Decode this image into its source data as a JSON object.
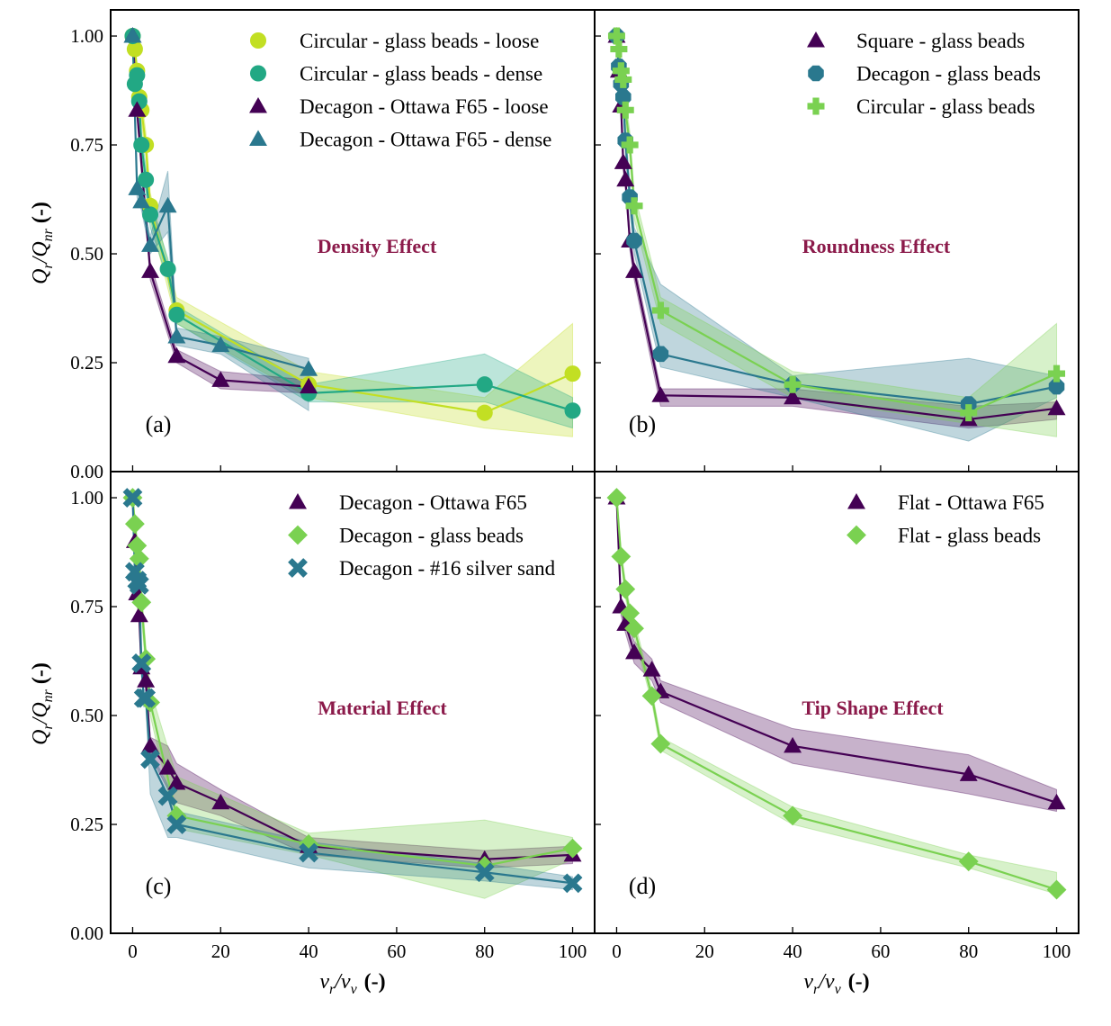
{
  "figure": {
    "xlabel_main": "v",
    "xlabel_sub1": "r",
    "xlabel_slash": "/v",
    "xlabel_sub2": "v",
    "xlabel_unit": "(-)",
    "ylabel_main": "Q",
    "ylabel_sub1": "r",
    "ylabel_slash": "/Q",
    "ylabel_sub2": "nr",
    "ylabel_unit": "(-)"
  },
  "colors": {
    "dark_purple": "#440154",
    "teal_blue": "#2a788e",
    "teal_green": "#22a884",
    "light_green": "#7ad151",
    "yellow_green": "#c2df23",
    "annotation": "#8b1a4a"
  },
  "chart_data": [
    {
      "type": "line",
      "panel": "(a)",
      "annotation": "Density Effect",
      "xlim": [
        -5,
        105
      ],
      "ylim": [
        0,
        1.06
      ],
      "xticks": [
        "0",
        "20",
        "40",
        "60",
        "80",
        "100"
      ],
      "yticks": [
        "0.00",
        "0.25",
        "0.50",
        "0.75",
        "1.00"
      ],
      "series": [
        {
          "name": "Circular - glass beads - loose",
          "marker": "circle",
          "color": "#c2df23",
          "x": [
            0,
            0.5,
            1,
            1.5,
            2,
            3,
            4,
            10,
            40,
            80,
            100
          ],
          "y": [
            1.0,
            0.97,
            0.92,
            0.86,
            0.83,
            0.75,
            0.61,
            0.37,
            0.2,
            0.135,
            0.225
          ],
          "lo": [
            1.0,
            0.96,
            0.9,
            0.84,
            0.8,
            0.72,
            0.58,
            0.34,
            0.17,
            0.1,
            0.08
          ],
          "hi": [
            1.0,
            0.98,
            0.94,
            0.88,
            0.86,
            0.78,
            0.64,
            0.4,
            0.23,
            0.17,
            0.34
          ]
        },
        {
          "name": "Circular - glass beads - dense",
          "marker": "circle",
          "color": "#22a884",
          "x": [
            0,
            0.5,
            1,
            1.5,
            2,
            3,
            4,
            8,
            10,
            40,
            80,
            100
          ],
          "y": [
            1.0,
            0.89,
            0.91,
            0.85,
            0.75,
            0.67,
            0.59,
            0.465,
            0.36,
            0.18,
            0.2,
            0.14
          ],
          "lo": [
            1.0,
            0.87,
            0.89,
            0.83,
            0.72,
            0.64,
            0.56,
            0.44,
            0.34,
            0.16,
            0.16,
            0.1
          ],
          "hi": [
            1.0,
            0.91,
            0.93,
            0.87,
            0.78,
            0.7,
            0.62,
            0.49,
            0.38,
            0.2,
            0.27,
            0.17
          ]
        },
        {
          "name": "Decagon - Ottawa F65 - loose",
          "marker": "triangle",
          "color": "#440154",
          "x": [
            0,
            1,
            4,
            10,
            20,
            40
          ],
          "y": [
            1.0,
            0.83,
            0.46,
            0.265,
            0.21,
            0.195
          ],
          "lo": [
            1.0,
            0.81,
            0.44,
            0.25,
            0.19,
            0.18
          ],
          "hi": [
            1.0,
            0.85,
            0.48,
            0.28,
            0.23,
            0.21
          ]
        },
        {
          "name": "Decagon - Ottawa F65 - dense",
          "marker": "triangle",
          "color": "#2a788e",
          "x": [
            0,
            1,
            2,
            4,
            8,
            10,
            20,
            40
          ],
          "y": [
            1.0,
            0.65,
            0.62,
            0.52,
            0.61,
            0.31,
            0.29,
            0.235
          ],
          "lo": [
            1.0,
            0.63,
            0.6,
            0.5,
            0.55,
            0.29,
            0.27,
            0.14
          ],
          "hi": [
            1.0,
            0.67,
            0.64,
            0.54,
            0.69,
            0.33,
            0.31,
            0.26
          ]
        }
      ]
    },
    {
      "type": "line",
      "panel": "(b)",
      "annotation": "Roundness Effect",
      "xlim": [
        -5,
        105
      ],
      "ylim": [
        0,
        1.06
      ],
      "xticks": [
        "0",
        "20",
        "40",
        "60",
        "80",
        "100"
      ],
      "yticks": [
        "0.00",
        "0.25",
        "0.50",
        "0.75",
        "1.00"
      ],
      "series": [
        {
          "name": "Square - glass beads",
          "marker": "triangle",
          "color": "#440154",
          "x": [
            0,
            0.5,
            1,
            1.5,
            2,
            3,
            4,
            10,
            40,
            80,
            100
          ],
          "y": [
            1.0,
            0.92,
            0.84,
            0.71,
            0.67,
            0.53,
            0.46,
            0.175,
            0.17,
            0.12,
            0.145
          ],
          "lo": [
            1.0,
            0.9,
            0.82,
            0.69,
            0.65,
            0.51,
            0.44,
            0.15,
            0.15,
            0.1,
            0.12
          ],
          "hi": [
            1.0,
            0.94,
            0.86,
            0.73,
            0.69,
            0.55,
            0.48,
            0.19,
            0.19,
            0.15,
            0.16
          ]
        },
        {
          "name": "Decagon - glass beads",
          "marker": "octagon",
          "color": "#2a788e",
          "x": [
            0,
            0.5,
            1,
            1.5,
            2,
            3,
            4,
            10,
            40,
            80,
            100
          ],
          "y": [
            1.0,
            0.93,
            0.89,
            0.86,
            0.76,
            0.63,
            0.53,
            0.27,
            0.2,
            0.155,
            0.195
          ],
          "lo": [
            1.0,
            0.91,
            0.87,
            0.84,
            0.73,
            0.6,
            0.5,
            0.24,
            0.17,
            0.07,
            0.17
          ],
          "hi": [
            1.0,
            0.95,
            0.91,
            0.88,
            0.79,
            0.66,
            0.56,
            0.43,
            0.22,
            0.26,
            0.22
          ]
        },
        {
          "name": "Circular - glass beads",
          "marker": "plus",
          "color": "#7ad151",
          "x": [
            0,
            0.5,
            1,
            1.5,
            2,
            3,
            4,
            10,
            40,
            80,
            100
          ],
          "y": [
            1.0,
            0.97,
            0.92,
            0.9,
            0.83,
            0.75,
            0.61,
            0.37,
            0.2,
            0.135,
            0.225
          ],
          "lo": [
            1.0,
            0.96,
            0.9,
            0.88,
            0.8,
            0.72,
            0.58,
            0.34,
            0.17,
            0.11,
            0.08
          ],
          "hi": [
            1.0,
            0.98,
            0.94,
            0.92,
            0.86,
            0.78,
            0.64,
            0.4,
            0.23,
            0.17,
            0.34
          ]
        }
      ]
    },
    {
      "type": "line",
      "panel": "(c)",
      "annotation": "Material Effect",
      "xlim": [
        -5,
        105
      ],
      "ylim": [
        0,
        1.06
      ],
      "xticks": [
        "0",
        "20",
        "40",
        "60",
        "80",
        "100"
      ],
      "yticks": [
        "0.00",
        "0.25",
        "0.50",
        "0.75",
        "1.00"
      ],
      "series": [
        {
          "name": "Decagon - Ottawa F65",
          "marker": "triangle",
          "color": "#440154",
          "x": [
            0,
            0.5,
            1,
            1.5,
            2,
            3,
            4,
            8,
            10,
            20,
            40,
            80,
            100
          ],
          "y": [
            1.0,
            0.9,
            0.78,
            0.73,
            0.61,
            0.58,
            0.43,
            0.38,
            0.345,
            0.3,
            0.2,
            0.17,
            0.18
          ],
          "lo": [
            1.0,
            0.88,
            0.76,
            0.71,
            0.59,
            0.56,
            0.41,
            0.33,
            0.3,
            0.27,
            0.18,
            0.15,
            0.16
          ],
          "hi": [
            1.0,
            0.92,
            0.8,
            0.75,
            0.63,
            0.6,
            0.45,
            0.43,
            0.39,
            0.33,
            0.22,
            0.19,
            0.2
          ]
        },
        {
          "name": "Decagon - glass beads",
          "marker": "diamond",
          "color": "#7ad151",
          "x": [
            0,
            0.5,
            1,
            1.5,
            2,
            3,
            4,
            10,
            40,
            80,
            100
          ],
          "y": [
            1.0,
            0.94,
            0.89,
            0.86,
            0.76,
            0.63,
            0.53,
            0.27,
            0.205,
            0.155,
            0.195
          ],
          "lo": [
            1.0,
            0.92,
            0.87,
            0.84,
            0.73,
            0.6,
            0.5,
            0.24,
            0.18,
            0.08,
            0.17
          ],
          "hi": [
            1.0,
            0.96,
            0.91,
            0.88,
            0.79,
            0.66,
            0.56,
            0.36,
            0.23,
            0.26,
            0.22
          ]
        },
        {
          "name": "Decagon - #16 silver sand",
          "marker": "cross",
          "color": "#2a788e",
          "x": [
            0,
            0.5,
            1,
            1.5,
            2,
            2.5,
            3,
            4,
            8,
            10,
            40,
            80,
            100
          ],
          "y": [
            1.0,
            0.83,
            0.81,
            0.8,
            0.62,
            0.54,
            0.54,
            0.4,
            0.315,
            0.25,
            0.185,
            0.14,
            0.115
          ],
          "lo": [
            1.0,
            0.81,
            0.79,
            0.78,
            0.6,
            0.52,
            0.52,
            0.32,
            0.22,
            0.22,
            0.15,
            0.12,
            0.1
          ],
          "hi": [
            1.0,
            0.85,
            0.83,
            0.82,
            0.64,
            0.56,
            0.56,
            0.42,
            0.34,
            0.28,
            0.21,
            0.16,
            0.13
          ]
        }
      ]
    },
    {
      "type": "line",
      "panel": "(d)",
      "annotation": "Tip Shape Effect",
      "xlim": [
        -5,
        105
      ],
      "ylim": [
        0,
        1.06
      ],
      "xticks": [
        "0",
        "20",
        "40",
        "60",
        "80",
        "100"
      ],
      "yticks": [
        "0.00",
        "0.25",
        "0.50",
        "0.75",
        "1.00"
      ],
      "series": [
        {
          "name": "Flat - Ottawa F65",
          "marker": "triangle",
          "color": "#440154",
          "x": [
            0,
            1,
            2,
            4,
            8,
            10,
            40,
            80,
            100
          ],
          "y": [
            1.0,
            0.75,
            0.71,
            0.645,
            0.605,
            0.555,
            0.43,
            0.365,
            0.3
          ],
          "lo": [
            1.0,
            0.73,
            0.69,
            0.62,
            0.58,
            0.53,
            0.39,
            0.32,
            0.28
          ],
          "hi": [
            1.0,
            0.77,
            0.73,
            0.67,
            0.63,
            0.58,
            0.47,
            0.41,
            0.33
          ]
        },
        {
          "name": "Flat - glass beads",
          "marker": "diamond",
          "color": "#7ad151",
          "x": [
            0,
            1,
            2,
            3,
            4,
            8,
            10,
            40,
            80,
            100
          ],
          "y": [
            1.0,
            0.865,
            0.79,
            0.735,
            0.7,
            0.545,
            0.435,
            0.27,
            0.165,
            0.1
          ],
          "lo": [
            1.0,
            0.85,
            0.77,
            0.72,
            0.68,
            0.53,
            0.42,
            0.25,
            0.15,
            0.09
          ],
          "hi": [
            1.0,
            0.88,
            0.81,
            0.75,
            0.72,
            0.56,
            0.45,
            0.29,
            0.18,
            0.14
          ]
        }
      ]
    }
  ]
}
